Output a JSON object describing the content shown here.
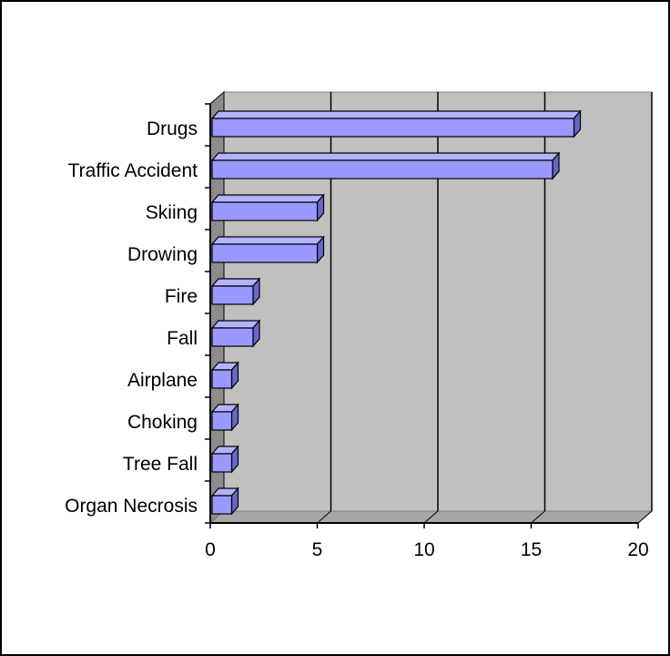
{
  "chart_data": {
    "type": "bar",
    "orientation": "horizontal",
    "style": "3d",
    "categories": [
      "Drugs",
      "Traffic Accident",
      "Skiing",
      "Drowing",
      "Fire",
      "Fall",
      "Airplane",
      "Choking",
      "Tree Fall",
      "Organ Necrosis"
    ],
    "values": [
      17,
      16,
      5,
      5,
      2,
      2,
      1,
      1,
      1,
      1
    ],
    "xlim": [
      0,
      20
    ],
    "xticks": [
      "0",
      "5",
      "10",
      "15",
      "20"
    ],
    "title": "",
    "xlabel": "",
    "ylabel": "",
    "grid": "vertical",
    "legend": "none",
    "colors": {
      "bar_front": "#9999ff",
      "bar_top": "#b3b3ff",
      "bar_side": "#6666cc",
      "plot_back": "#c0c0c0",
      "plot_floor": "#a6a6a6",
      "plot_wall": "#8c8c8c"
    }
  }
}
